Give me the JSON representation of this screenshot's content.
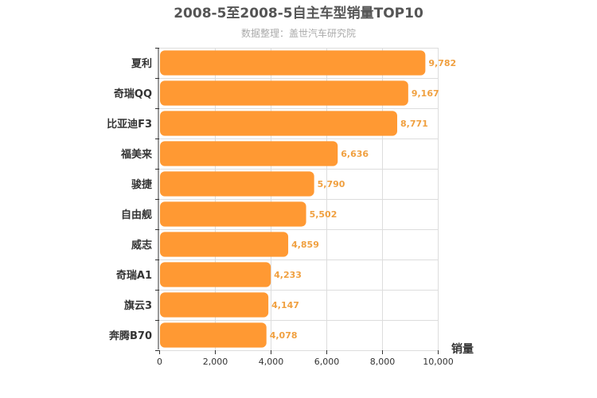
{
  "chart_data": {
    "type": "bar",
    "orientation": "horizontal",
    "title": "2008-5至2008-5自主车型销量TOP10",
    "subtitle": "数据整理：盖世汽车研究院",
    "categories": [
      "夏利",
      "奇瑞QQ",
      "比亚迪F3",
      "福美来",
      "骏捷",
      "自由舰",
      "威志",
      "奇瑞A1",
      "旗云3",
      "奔腾B70"
    ],
    "values": [
      9782,
      9167,
      8771,
      6636,
      5790,
      5502,
      4859,
      4233,
      4147,
      4078
    ],
    "value_labels": [
      "9,782",
      "9,167",
      "8,771",
      "6,636",
      "5,790",
      "5,502",
      "4,859",
      "4,233",
      "4,147",
      "4,078"
    ],
    "xlabel": "销量",
    "xlim": [
      0,
      10000
    ],
    "xticks": [
      0,
      2000,
      4000,
      6000,
      8000,
      10000
    ],
    "xtick_labels": [
      "0",
      "2,000",
      "4,000",
      "6,000",
      "8,000",
      "10,000"
    ],
    "grid": true,
    "bar_color": "#ff9933",
    "value_label_color": "#f0a040"
  }
}
